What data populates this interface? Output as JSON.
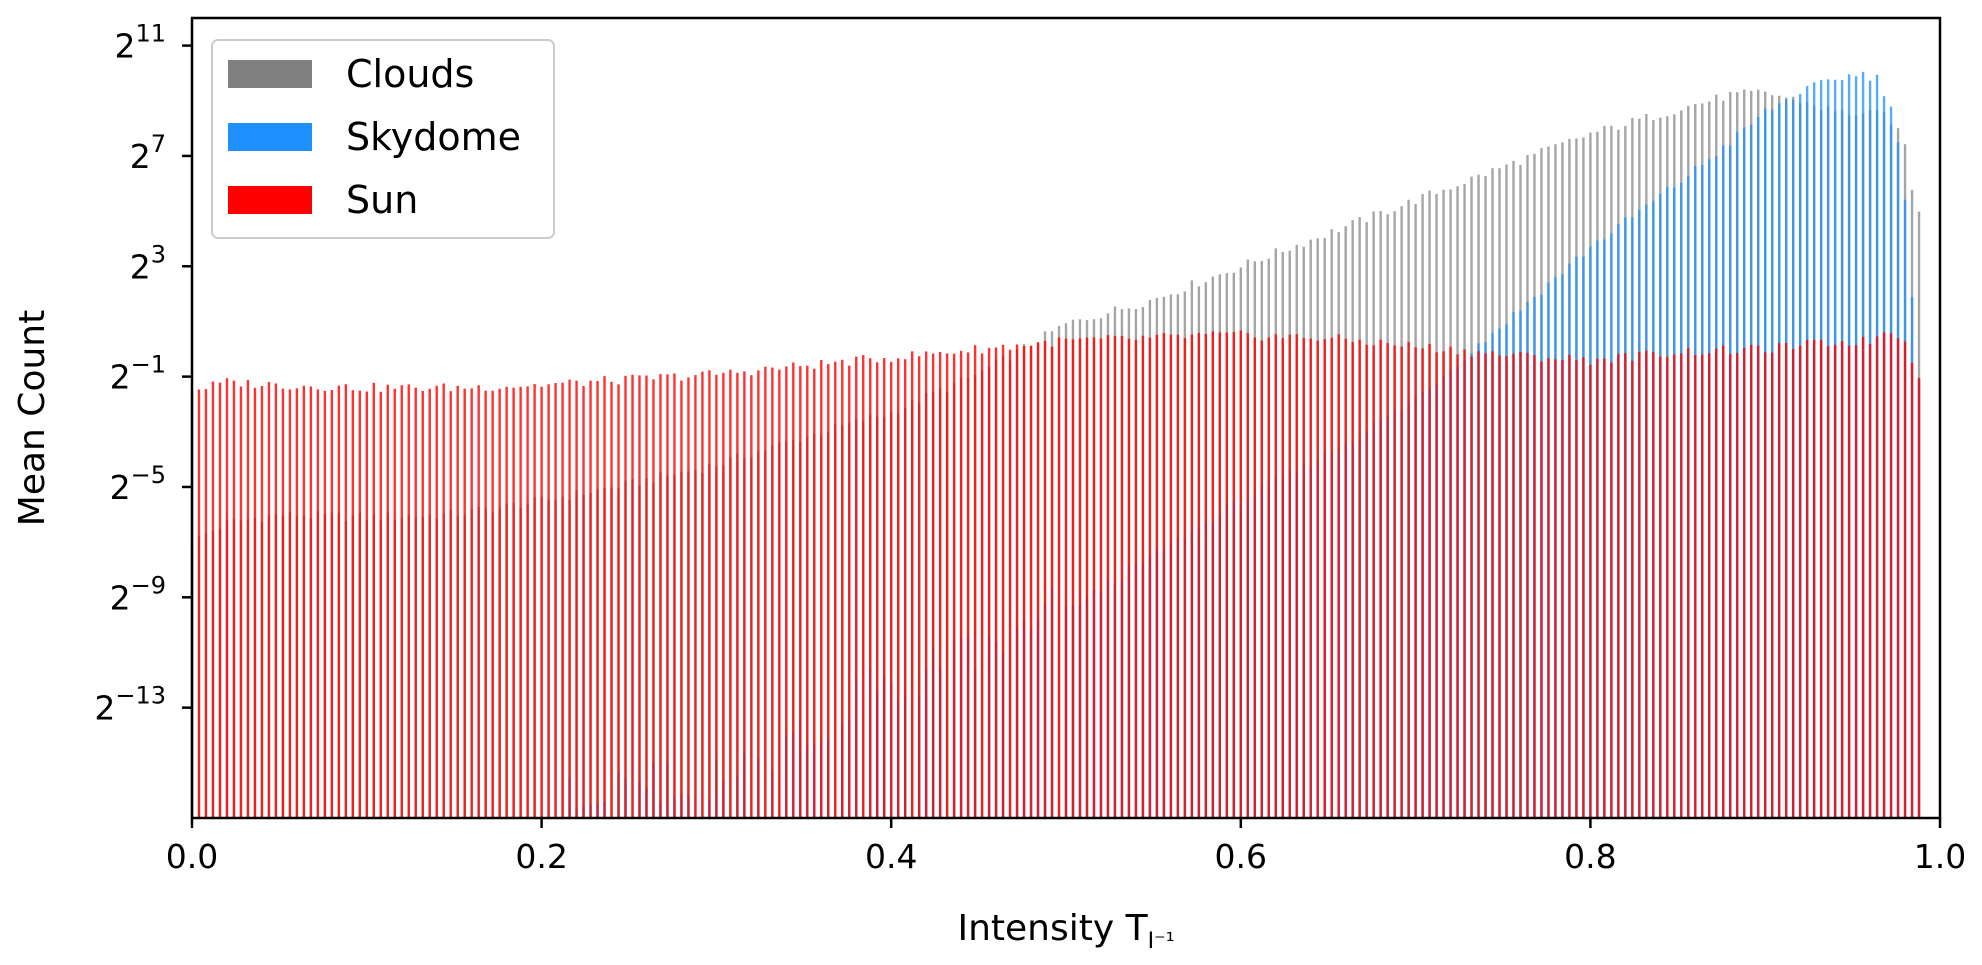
{
  "chart_data": {
    "type": "bar",
    "title": "",
    "xlabel": "Intensity T",
    "xlabel_subscript": "I⁻¹",
    "ylabel": "Mean Count",
    "xlim": [
      0.0,
      1.0
    ],
    "ylim_log2": [
      -17,
      12
    ],
    "y_scale": "log2",
    "x_ticks": [
      {
        "value": 0.0,
        "label": "0.0"
      },
      {
        "value": 0.2,
        "label": "0.2"
      },
      {
        "value": 0.4,
        "label": "0.4"
      },
      {
        "value": 0.6,
        "label": "0.6"
      },
      {
        "value": 0.8,
        "label": "0.8"
      },
      {
        "value": 1.0,
        "label": "1.0"
      }
    ],
    "y_ticks": [
      {
        "exp": 11,
        "base": "2",
        "sup": "11"
      },
      {
        "exp": 7,
        "base": "2",
        "sup": "7"
      },
      {
        "exp": 3,
        "base": "2",
        "sup": "3"
      },
      {
        "exp": -1,
        "base": "2",
        "sup": "−1"
      },
      {
        "exp": -5,
        "base": "2",
        "sup": "−5"
      },
      {
        "exp": -9,
        "base": "2",
        "sup": "−9"
      },
      {
        "exp": -13,
        "base": "2",
        "sup": "−13"
      }
    ],
    "grid": false,
    "legend_position": "top-left",
    "bar_spacing": 0.004,
    "series": [
      {
        "name": "Clouds",
        "color": "#808080",
        "opacity": 0.7,
        "x_start": 0.0,
        "x_end": 0.99,
        "profile_log2": [
          [
            0.0,
            -7.0
          ],
          [
            0.02,
            -6.3
          ],
          [
            0.05,
            -6.0
          ],
          [
            0.1,
            -6.1
          ],
          [
            0.15,
            -6.0
          ],
          [
            0.2,
            -5.5
          ],
          [
            0.25,
            -4.9
          ],
          [
            0.3,
            -4.2
          ],
          [
            0.35,
            -3.2
          ],
          [
            0.4,
            -2.3
          ],
          [
            0.45,
            -0.9
          ],
          [
            0.5,
            0.9
          ],
          [
            0.55,
            1.8
          ],
          [
            0.6,
            3.0
          ],
          [
            0.65,
            4.2
          ],
          [
            0.7,
            5.4
          ],
          [
            0.75,
            6.6
          ],
          [
            0.8,
            7.8
          ],
          [
            0.85,
            8.7
          ],
          [
            0.88,
            9.2
          ],
          [
            0.9,
            9.3
          ],
          [
            0.92,
            9.0
          ],
          [
            0.94,
            8.6
          ],
          [
            0.96,
            8.5
          ],
          [
            0.97,
            8.5
          ],
          [
            0.98,
            7.4
          ],
          [
            0.985,
            5.5
          ],
          [
            0.99,
            4.5
          ]
        ]
      },
      {
        "name": "Skydome",
        "color": "#1e90ff",
        "opacity": 0.75,
        "x_start": 0.2,
        "x_end": 0.99,
        "profile_log2": [
          [
            0.2,
            -17.0
          ],
          [
            0.25,
            -16.5
          ],
          [
            0.3,
            -16.0
          ],
          [
            0.33,
            -15.0
          ],
          [
            0.36,
            -14.0
          ],
          [
            0.4,
            -12.5
          ],
          [
            0.45,
            -11.5
          ],
          [
            0.48,
            -10.5
          ],
          [
            0.5,
            -9.5
          ],
          [
            0.55,
            -7.5
          ],
          [
            0.6,
            -5.5
          ],
          [
            0.65,
            -3.8
          ],
          [
            0.7,
            -1.8
          ],
          [
            0.75,
            0.9
          ],
          [
            0.8,
            3.7
          ],
          [
            0.85,
            6.0
          ],
          [
            0.88,
            7.5
          ],
          [
            0.9,
            8.6
          ],
          [
            0.92,
            9.3
          ],
          [
            0.94,
            9.8
          ],
          [
            0.955,
            10.0
          ],
          [
            0.965,
            9.8
          ],
          [
            0.975,
            8.2
          ],
          [
            0.98,
            5.5
          ],
          [
            0.985,
            1.0
          ],
          [
            0.99,
            -2.5
          ]
        ]
      },
      {
        "name": "Sun",
        "color": "#ff0000",
        "opacity": 0.8,
        "x_start": 0.0,
        "x_end": 0.99,
        "profile_log2": [
          [
            0.0,
            -1.5
          ],
          [
            0.02,
            -1.2
          ],
          [
            0.05,
            -1.3
          ],
          [
            0.1,
            -1.4
          ],
          [
            0.15,
            -1.4
          ],
          [
            0.2,
            -1.3
          ],
          [
            0.25,
            -1.1
          ],
          [
            0.3,
            -0.9
          ],
          [
            0.35,
            -0.6
          ],
          [
            0.4,
            -0.3
          ],
          [
            0.45,
            0.0
          ],
          [
            0.5,
            0.3
          ],
          [
            0.55,
            0.4
          ],
          [
            0.58,
            0.5
          ],
          [
            0.6,
            0.5
          ],
          [
            0.65,
            0.4
          ],
          [
            0.7,
            0.1
          ],
          [
            0.75,
            -0.2
          ],
          [
            0.8,
            -0.4
          ],
          [
            0.85,
            -0.1
          ],
          [
            0.9,
            0.0
          ],
          [
            0.93,
            0.2
          ],
          [
            0.96,
            0.3
          ],
          [
            0.97,
            0.7
          ],
          [
            0.98,
            0.4
          ],
          [
            0.99,
            -1.5
          ]
        ]
      }
    ]
  },
  "legend": {
    "items": [
      {
        "label": "Clouds",
        "color": "#808080"
      },
      {
        "label": "Skydome",
        "color": "#1e90ff"
      },
      {
        "label": "Sun",
        "color": "#ff0000"
      }
    ]
  }
}
